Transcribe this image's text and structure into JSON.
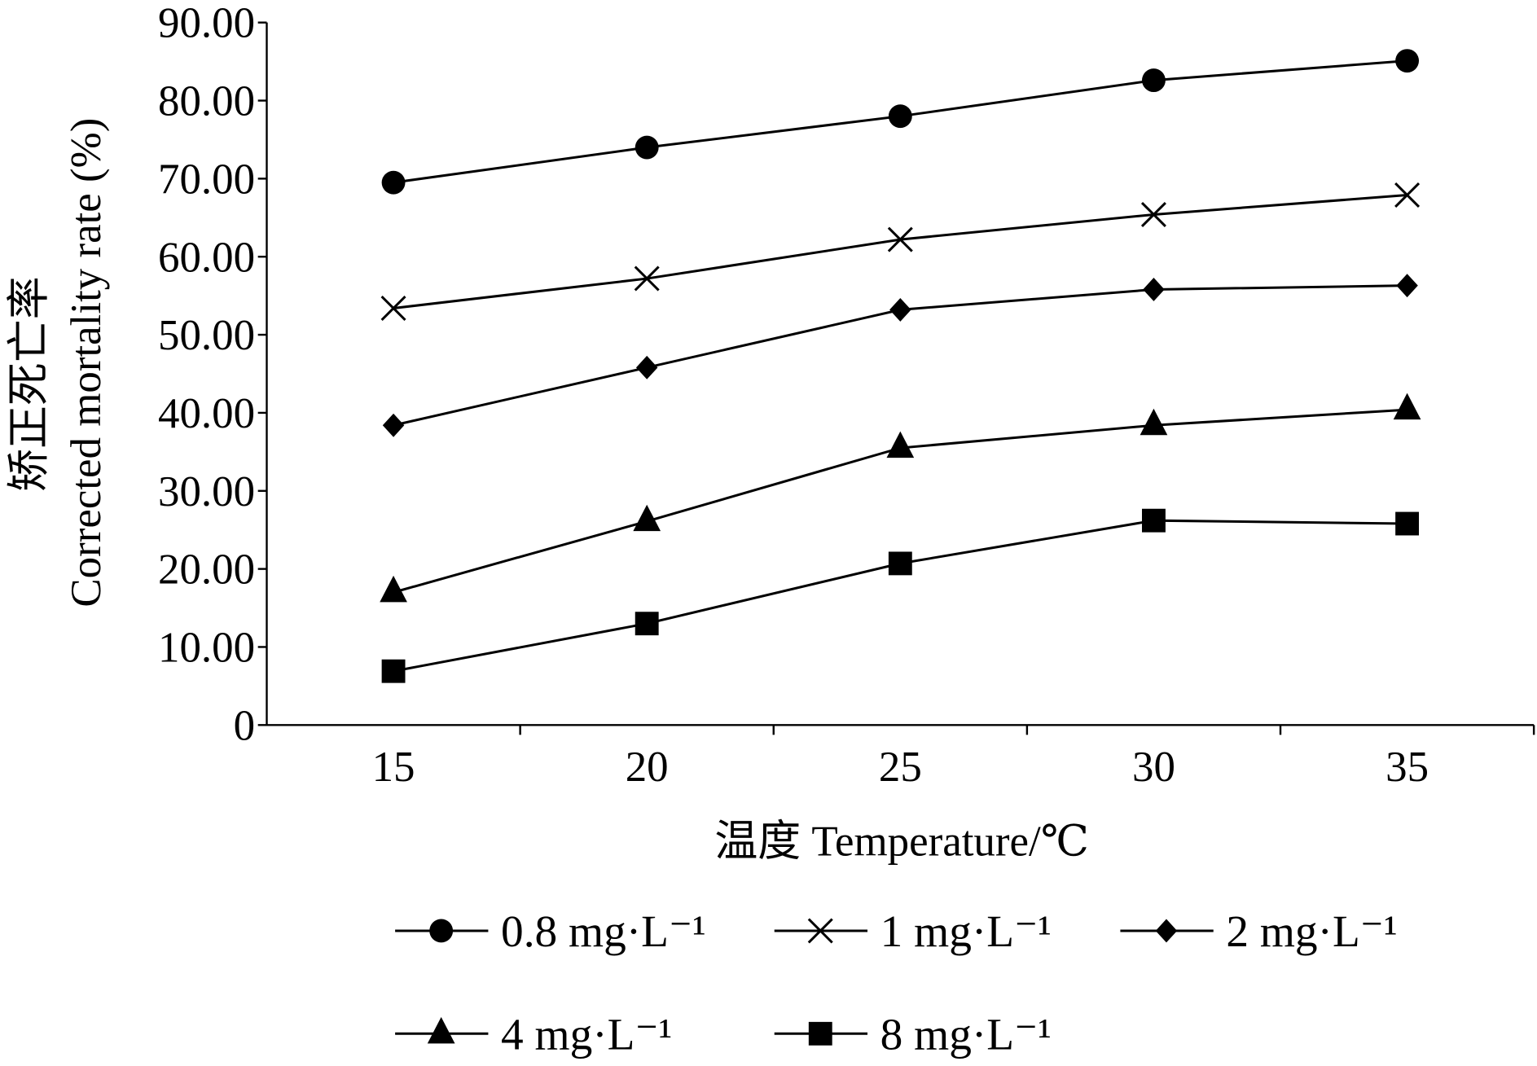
{
  "chart_data": {
    "type": "line",
    "title": "",
    "xlabel": "温度  Temperature/℃",
    "ylabel_zh": "矫正死亡率",
    "ylabel": "Corrected mortality rate (%)",
    "categories": [
      "15",
      "20",
      "25",
      "30",
      "35"
    ],
    "ylim": [
      0,
      90
    ],
    "yticks": [
      "0",
      "10.00",
      "20.00",
      "30.00",
      "40.00",
      "50.00",
      "60.00",
      "70.00",
      "80.00",
      "90.00"
    ],
    "grid": false,
    "legend_position": "bottom",
    "series": [
      {
        "name": "0.8 mg·L⁻¹",
        "marker": "circle",
        "values": [
          69.5,
          74.0,
          78.0,
          82.6,
          85.1
        ]
      },
      {
        "name": "1 mg·L⁻¹",
        "marker": "x",
        "values": [
          53.4,
          57.2,
          62.2,
          65.4,
          67.9
        ]
      },
      {
        "name": "2 mg·L⁻¹",
        "marker": "diamond",
        "values": [
          38.4,
          45.8,
          53.2,
          55.8,
          56.3
        ]
      },
      {
        "name": "4 mg·L⁻¹",
        "marker": "triangle",
        "values": [
          17.0,
          26.1,
          35.5,
          38.4,
          40.4
        ]
      },
      {
        "name": "8 mg·L⁻¹",
        "marker": "square",
        "values": [
          6.9,
          13.0,
          20.7,
          26.2,
          25.8
        ]
      }
    ],
    "color": "#000000"
  }
}
